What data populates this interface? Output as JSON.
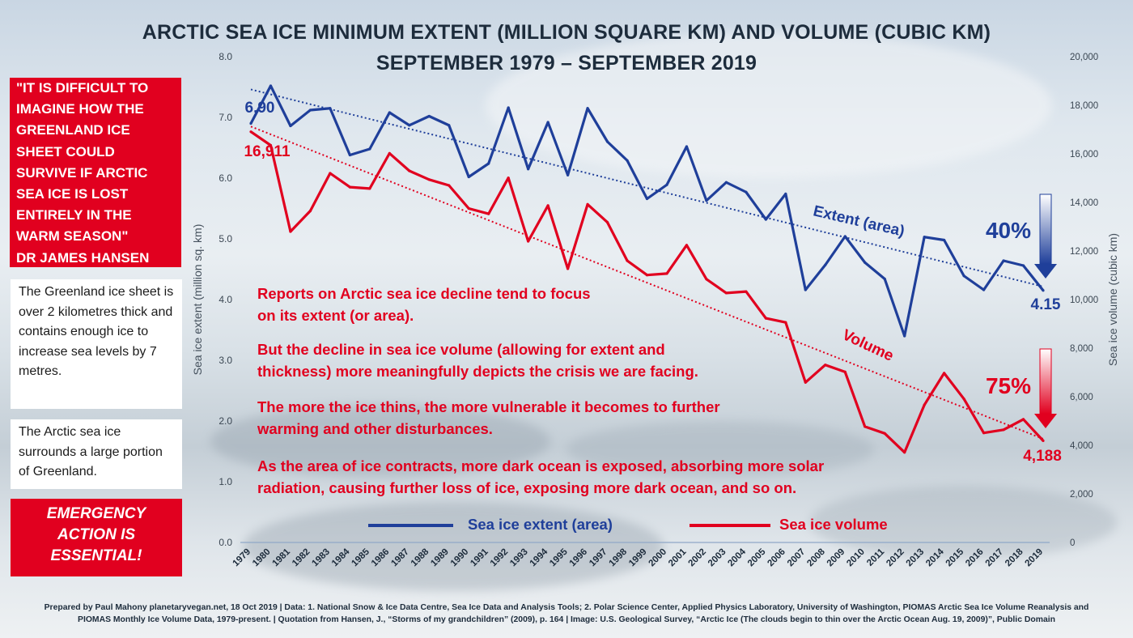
{
  "chart_data": {
    "type": "line",
    "title": "ARCTIC SEA ICE MINIMUM EXTENT (MILLION SQUARE KM) AND VOLUME (CUBIC KM)",
    "subtitle": "SEPTEMBER 1979 – SEPTEMBER 2019",
    "ylabel": "Sea ice extent (million sq. km)",
    "y2label": "Sea ice volume (cubic km)",
    "ylim": [
      0,
      8
    ],
    "y2lim": [
      0,
      20000
    ],
    "yticks": [
      "0.0",
      "1.0",
      "2.0",
      "3.0",
      "4.0",
      "5.0",
      "6.0",
      "7.0",
      "8.0"
    ],
    "y2ticks": [
      "0",
      "2,000",
      "4,000",
      "6,000",
      "8,000",
      "10,000",
      "12,000",
      "14,000",
      "16,000",
      "18,000",
      "20,000"
    ],
    "categories": [
      "1979",
      "1980",
      "1981",
      "1982",
      "1983",
      "1984",
      "1985",
      "1986",
      "1987",
      "1988",
      "1989",
      "1990",
      "1991",
      "1992",
      "1993",
      "1994",
      "1995",
      "1996",
      "1997",
      "1998",
      "1999",
      "2000",
      "2001",
      "2002",
      "2003",
      "2004",
      "2005",
      "2006",
      "2007",
      "2008",
      "2009",
      "2010",
      "2011",
      "2012",
      "2013",
      "2014",
      "2015",
      "2016",
      "2017",
      "2018",
      "2019"
    ],
    "series": [
      {
        "name": "Sea ice extent (area)",
        "axis": "left",
        "color": "#1f3f9a",
        "values": [
          6.9,
          7.52,
          6.86,
          7.12,
          7.15,
          6.38,
          6.48,
          7.08,
          6.87,
          7.02,
          6.87,
          6.02,
          6.24,
          7.16,
          6.15,
          6.92,
          6.05,
          7.15,
          6.6,
          6.29,
          5.66,
          5.89,
          6.52,
          5.63,
          5.93,
          5.77,
          5.32,
          5.74,
          4.16,
          4.57,
          5.04,
          4.61,
          4.34,
          3.4,
          5.03,
          4.98,
          4.39,
          4.16,
          4.64,
          4.56,
          4.15
        ]
      },
      {
        "name": "Sea ice volume",
        "axis": "right",
        "color": "#e1001f",
        "values": [
          16911,
          16350,
          12800,
          13650,
          15200,
          14630,
          14570,
          16020,
          15300,
          14940,
          14700,
          13750,
          13530,
          15010,
          12400,
          13870,
          11270,
          13920,
          13180,
          11600,
          11010,
          11070,
          12240,
          10840,
          10270,
          10330,
          9230,
          9060,
          6590,
          7310,
          7020,
          4770,
          4490,
          3710,
          5660,
          6970,
          5910,
          4510,
          4640,
          5070,
          4188
        ]
      }
    ],
    "annotations": {
      "extent_start": "6.90",
      "volume_start": "16,911",
      "extent_end": "4.15",
      "volume_end": "4,188",
      "extent_decline": "40%",
      "volume_decline": "75%",
      "extent_series_label": "Extent (area)",
      "volume_series_label": "Volume"
    },
    "body_lines": [
      "Reports on Arctic sea ice decline tend to focus",
      "on its extent (or area).",
      "But the decline in sea ice volume (allowing for extent and",
      "thickness) more meaningfully depicts the crisis we are facing.",
      "The more the ice thins, the more vulnerable it becomes to further",
      "warming and other disturbances.",
      "As the area of ice contracts, more dark ocean is exposed, absorbing more solar",
      "radiation, causing further loss of ice, exposing more dark ocean, and so on."
    ],
    "grid": false,
    "legend_position": "bottom-center"
  },
  "sidebar": {
    "quote_lines": [
      "\"IT IS DIFFICULT TO",
      "IMAGINE HOW THE",
      "GREENLAND ICE",
      "SHEET COULD",
      "SURVIVE IF ARCTIC",
      "SEA ICE IS LOST",
      "ENTIRELY IN THE",
      "WARM SEASON\"",
      "DR JAMES HANSEN"
    ],
    "info_1": "The Greenland ice sheet is over 2 kilometres thick and contains enough ice to increase sea levels by 7 metres.",
    "info_2": "The Arctic sea ice surrounds a large portion of Greenland.",
    "emergency_lines": [
      "EMERGENCY",
      "ACTION IS",
      "ESSENTIAL!"
    ]
  },
  "footer": {
    "line1": "Prepared by Paul Mahony planetaryvegan.net, 18 Oct 2019 | Data: 1. National Snow & Ice Data Centre, Sea Ice Data and Analysis Tools; 2. Polar Science Center, Applied Physics Laboratory, University of Washington, PIOMAS Arctic Sea Ice Volume Reanalysis and",
    "line2": "PIOMAS Monthly Ice Volume Data, 1979-present. | Quotation from Hansen, J., “Storms of my grandchildren” (2009), p. 164 | Image: U.S. Geological Survey, “Arctic Ice (The clouds begin to thin over the Arctic Ocean Aug. 19, 2009)”, Public Domain"
  }
}
